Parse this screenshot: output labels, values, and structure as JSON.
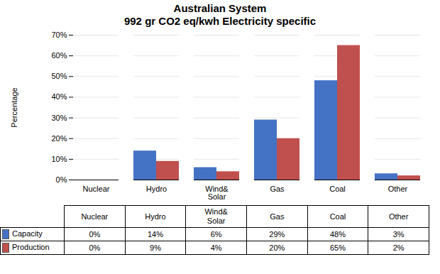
{
  "chart_data": {
    "type": "bar",
    "title": "Australian System",
    "subtitle": "992 gr CO2 eq/kwh Electricity specific",
    "categories": [
      "Nuclear",
      "Hydro",
      "Wind&\nSolar",
      "Gas",
      "Coal",
      "Other"
    ],
    "series": [
      {
        "name": "Capacity",
        "color": "#4472C4",
        "values": [
          0,
          14,
          6,
          29,
          48,
          3
        ],
        "value_labels": [
          "0%",
          "14%",
          "6%",
          "29%",
          "48%",
          "3%"
        ]
      },
      {
        "name": "Production",
        "color": "#C0504D",
        "values": [
          0,
          9,
          4,
          20,
          65,
          2
        ],
        "value_labels": [
          "0%",
          "9%",
          "4%",
          "20%",
          "65%",
          "2%"
        ]
      }
    ],
    "ylabel": "Percentage",
    "ylim": [
      0,
      70
    ],
    "yticks": [
      {
        "value": 0,
        "label": "0%"
      },
      {
        "value": 10,
        "label": "10%"
      },
      {
        "value": 20,
        "label": "20%"
      },
      {
        "value": 30,
        "label": "30%"
      },
      {
        "value": 40,
        "label": "40%"
      },
      {
        "value": 50,
        "label": "50%"
      },
      {
        "value": 60,
        "label": "60%"
      },
      {
        "value": 70,
        "label": "70%"
      }
    ],
    "grid": true,
    "legend": "bottom"
  }
}
